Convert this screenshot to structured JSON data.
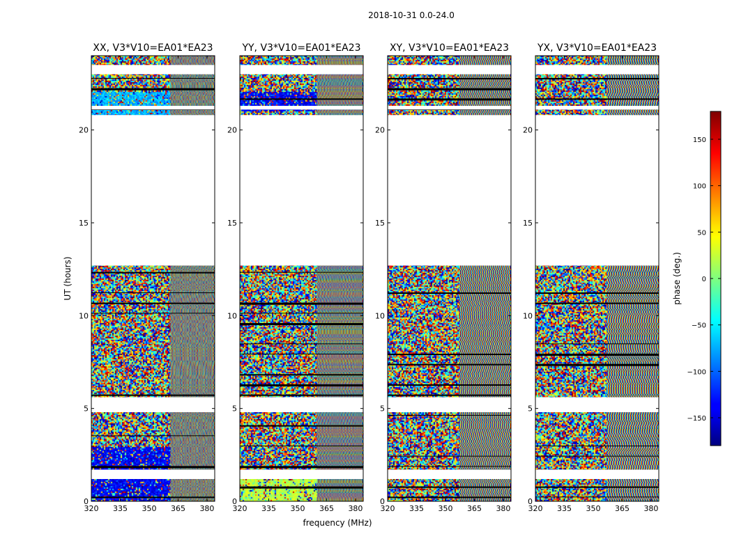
{
  "suptitle": "2018-10-31 0.0-24.0",
  "chart_data": {
    "type": "heatmap",
    "xlabel": "frequency (MHz)",
    "ylabel": "UT (hours)",
    "xlim": [
      320,
      384
    ],
    "ylim": [
      0,
      24
    ],
    "xticks": [
      "320",
      "335",
      "350",
      "365",
      "380"
    ],
    "xtick_values": [
      320,
      335,
      350,
      365,
      380
    ],
    "yticks": [
      "0",
      "5",
      "10",
      "15",
      "20"
    ],
    "ytick_values": [
      0,
      5,
      10,
      15,
      20
    ],
    "colormap": "jet",
    "colorbar": {
      "label": "phase (deg.)",
      "range": [
        -180,
        180
      ],
      "ticks": [
        "150",
        "100",
        "50",
        "0",
        "−50",
        "−100",
        "−150"
      ],
      "tick_values": [
        150,
        100,
        50,
        0,
        -50,
        -100,
        -150
      ]
    },
    "data_time_ranges_hours": [
      [
        0.0,
        1.2
      ],
      [
        1.7,
        4.8
      ],
      [
        5.6,
        12.7
      ],
      [
        20.8,
        24.0
      ]
    ],
    "flagged_time_ranges_hours": [
      [
        1.2,
        1.7
      ],
      [
        4.8,
        5.6
      ],
      [
        12.7,
        20.8
      ],
      [
        23.0,
        23.5
      ],
      [
        21.1,
        21.3
      ]
    ],
    "panels": [
      {
        "title": "XX, V3*V10=EA01*EA23",
        "stripe_start_mhz": 361
      },
      {
        "title": "YY, V3*V10=EA01*EA23",
        "stripe_start_mhz": 360
      },
      {
        "title": "XY, V3*V10=EA01*EA23",
        "stripe_start_mhz": 357
      },
      {
        "title": "YX, V3*V10=EA01*EA23",
        "stripe_start_mhz": 357
      }
    ]
  }
}
